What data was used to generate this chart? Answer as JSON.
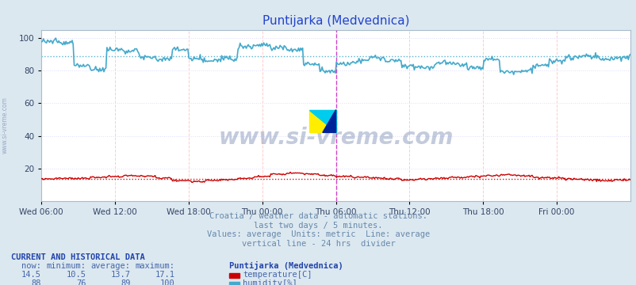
{
  "title": "Puntijarka (Medvednica)",
  "background_color": "#dce8f0",
  "plot_bg_color": "#ffffff",
  "grid_color_v": "#ffcccc",
  "grid_color_h": "#ddddff",
  "ylim": [
    0,
    105
  ],
  "yticks": [
    20,
    40,
    60,
    80,
    100
  ],
  "xtick_labels": [
    "Wed 06:00",
    "Wed 12:00",
    "Wed 18:00",
    "Thu 00:00",
    "Thu 06:00",
    "Thu 12:00",
    "Thu 18:00",
    "Fri 00:00"
  ],
  "xtick_positions": [
    0,
    72,
    144,
    216,
    288,
    360,
    432,
    504
  ],
  "n_points": 576,
  "temp_avg": 13.7,
  "temp_color": "#cc0000",
  "humidity_avg": 89,
  "humidity_color": "#44aacc",
  "vline_position": 288,
  "vline_color": "#cc44cc",
  "watermark": "www.si-vreme.com",
  "watermark_color": "#8899bb",
  "subtitle_lines": [
    "Croatia / weather data - automatic stations.",
    "last two days / 5 minutes.",
    "Values: average  Units: metric  Line: average",
    "vertical line - 24 hrs  divider"
  ],
  "subtitle_color": "#6688aa",
  "table_header": "CURRENT AND HISTORICAL DATA",
  "table_header_color": "#2244aa",
  "col_headers": [
    "now:",
    "minimum:",
    "average:",
    "maximum:",
    "Puntijarka (Medvednica)"
  ],
  "temp_row": [
    "14.5",
    "10.5",
    "13.7",
    "17.1"
  ],
  "humidity_row": [
    "88",
    "76",
    "89",
    "100"
  ],
  "temp_label": "temperature[C]",
  "humidity_label": "humidity[%]",
  "table_text_color": "#4466aa",
  "left_label": "www.si-vreme.com",
  "left_label_color": "#8899bb",
  "title_color": "#2244cc",
  "axis_text_color": "#334466",
  "tick_label_color": "#334466"
}
